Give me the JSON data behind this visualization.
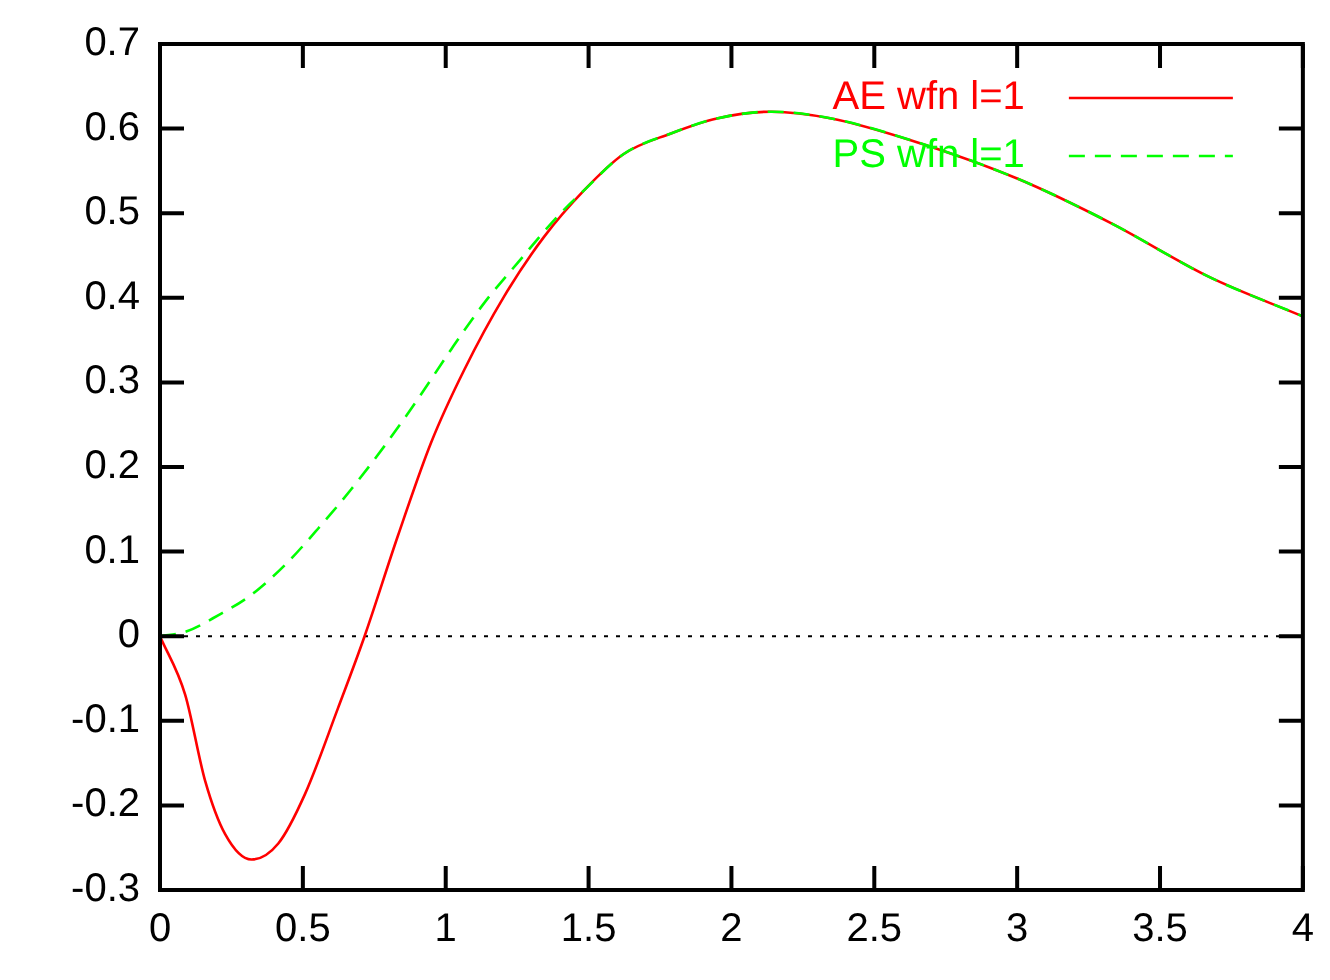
{
  "chart_data": {
    "type": "line",
    "xlim": [
      0,
      4
    ],
    "ylim": [
      -0.3,
      0.7
    ],
    "xticks": [
      0,
      0.5,
      1,
      1.5,
      2,
      2.5,
      3,
      3.5,
      4
    ],
    "yticks": [
      -0.3,
      -0.2,
      -0.1,
      0,
      0.1,
      0.2,
      0.3,
      0.4,
      0.5,
      0.6,
      0.7
    ],
    "legend": "top right",
    "grid": false,
    "marker": "none",
    "ref_lines": [
      {
        "axis": "y",
        "value": 0,
        "color": "#000000",
        "line_style": "dotted"
      }
    ],
    "series": [
      {
        "name": "AE wfn l=1",
        "color": "#ff0000",
        "line_style": "solid",
        "x": [
          0,
          0.088,
          0.158,
          0.228,
          0.32,
          0.414,
          0.507,
          0.623,
          0.716,
          0.833,
          0.949,
          1.065,
          1.205,
          1.344,
          1.484,
          1.623,
          1.786,
          1.949,
          2.14,
          2.35,
          2.63,
          3.0,
          3.33,
          3.67,
          4.0
        ],
        "values": [
          0,
          -0.069,
          -0.171,
          -0.234,
          -0.264,
          -0.245,
          -0.187,
          -0.085,
          0,
          0.119,
          0.229,
          0.315,
          0.402,
          0.472,
          0.527,
          0.57,
          0.594,
          0.612,
          0.62,
          0.612,
          0.586,
          0.541,
          0.488,
          0.425,
          0.378
        ]
      },
      {
        "name": "PS wfn l=1",
        "color": "#00ff00",
        "line_style": "dashed",
        "x": [
          0,
          0.088,
          0.205,
          0.32,
          0.437,
          0.553,
          0.67,
          0.786,
          0.902,
          1.019,
          1.135,
          1.251,
          1.391,
          1.484,
          1.623,
          1.786,
          1.949,
          2.14,
          2.35,
          2.63,
          3.0,
          3.33,
          3.67,
          4.0
        ],
        "values": [
          0,
          0.005,
          0.025,
          0.049,
          0.084,
          0.127,
          0.174,
          0.225,
          0.28,
          0.339,
          0.394,
          0.441,
          0.496,
          0.527,
          0.57,
          0.594,
          0.612,
          0.62,
          0.612,
          0.586,
          0.541,
          0.488,
          0.425,
          0.378
        ]
      }
    ]
  }
}
